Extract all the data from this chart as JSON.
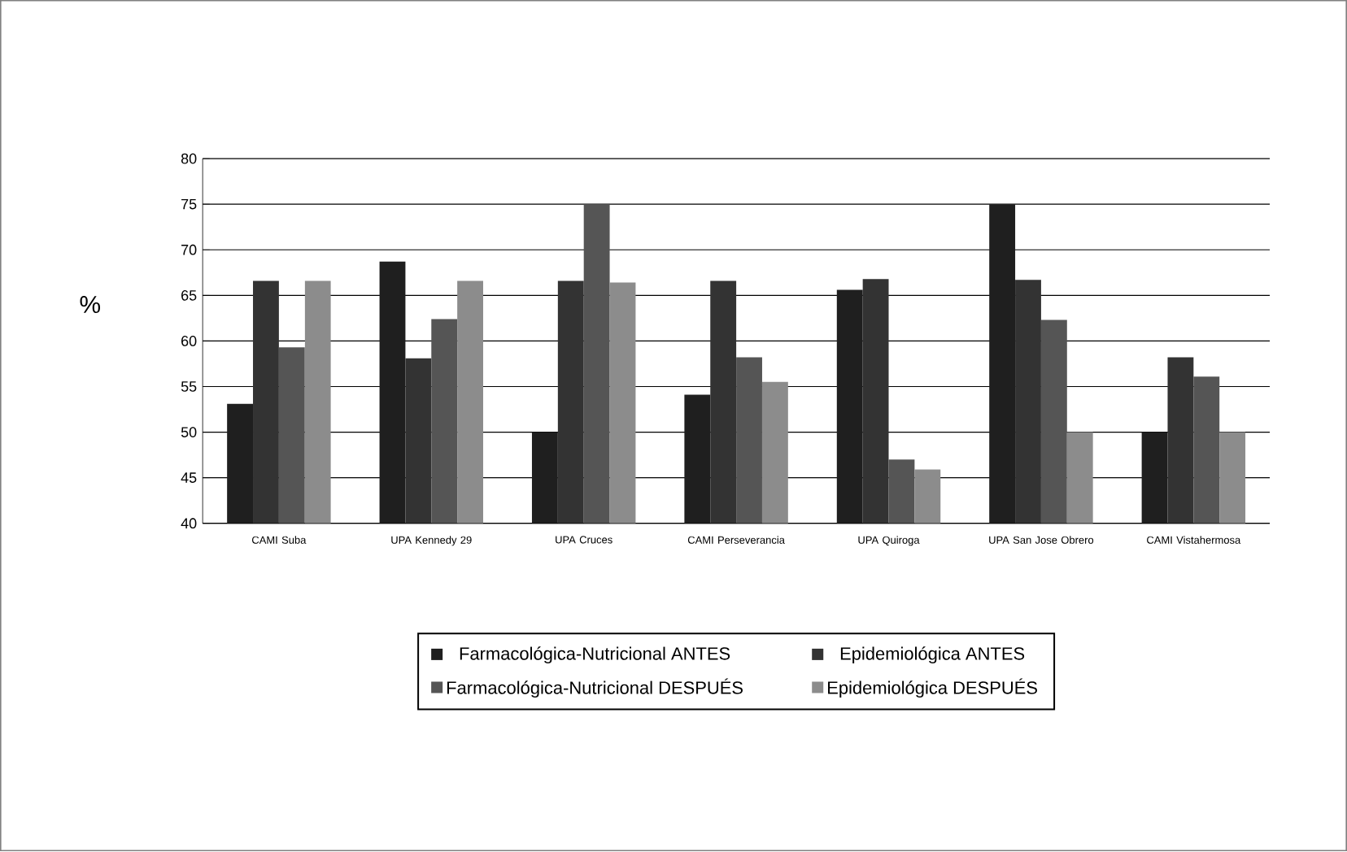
{
  "chart_data": {
    "type": "bar",
    "ylabel": "%",
    "categories": [
      "CAMI Suba",
      "UPA Kennedy 29",
      "UPA Cruces",
      "CAMI Perseverancia",
      "UPA Quiroga",
      "UPA San Jose Obrero",
      "CAMI Vistahermosa"
    ],
    "series": [
      {
        "name": "Farmacológica-Nutricional ANTES",
        "color": "#1f1f1f",
        "values": [
          53.1,
          68.7,
          50,
          54.1,
          65.6,
          75,
          50
        ]
      },
      {
        "name": "Epidemiológica ANTES",
        "color": "#333333",
        "values": [
          66.6,
          58.1,
          66.6,
          66.6,
          66.8,
          66.7,
          58.2
        ]
      },
      {
        "name": "Farmacológica-Nutricional DESPUÉS",
        "color": "#555555",
        "values": [
          59.3,
          62.4,
          75,
          58.2,
          47,
          62.3,
          56.1
        ]
      },
      {
        "name": "Epidemiológica DESPUÉS",
        "color": "#8c8c8c",
        "values": [
          66.6,
          66.6,
          66.4,
          55.5,
          45.9,
          50,
          50
        ]
      }
    ],
    "ylim": [
      40,
      80
    ],
    "yticks": [
      40,
      45,
      50,
      55,
      60,
      65,
      70,
      75,
      80
    ],
    "grid": "y",
    "legend": "bottom"
  }
}
